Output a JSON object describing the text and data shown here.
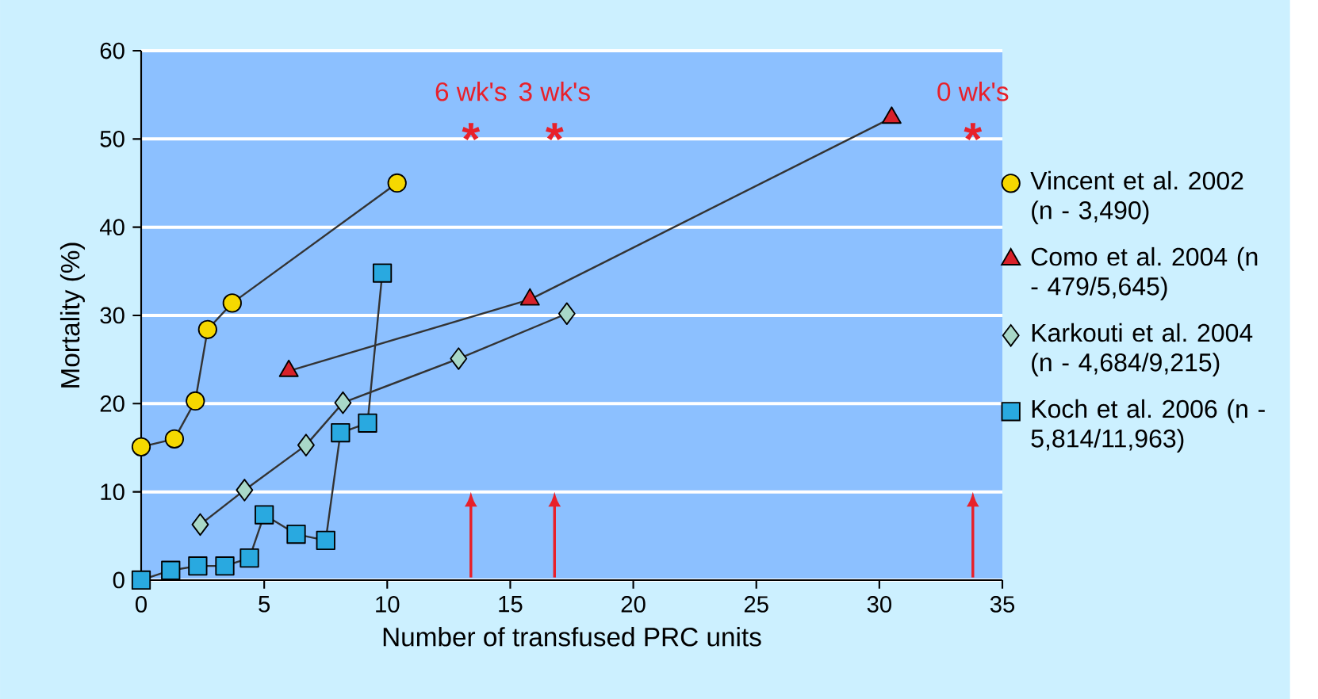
{
  "chart_data": {
    "type": "line",
    "xlabel": "Number of transfused PRC units",
    "ylabel": "Mortality (%)",
    "xlim": [
      0,
      35
    ],
    "xticks": [
      0,
      5,
      10,
      15,
      20,
      25,
      30,
      35
    ],
    "ylim": [
      0,
      60
    ],
    "yticks": [
      0,
      10,
      20,
      30,
      40,
      50,
      60
    ],
    "grid": "y",
    "legend": "right",
    "line_style": "solid",
    "series": [
      {
        "name": "Vincent et al. 2002 (n - 3,490)",
        "color": "#f5d800",
        "marker": "circle",
        "x": [
          0,
          1.35,
          2.2,
          2.7,
          3.7,
          10.4
        ],
        "values": [
          15.1,
          16,
          20.3,
          28.4,
          31.4,
          45
        ]
      },
      {
        "name": "Como et al. 2004 (n - 479/5,645)",
        "color": "#d8212a",
        "marker": "triangle",
        "x": [
          6.0,
          15.8,
          30.5
        ],
        "values": [
          23.7,
          31.8,
          52.4
        ]
      },
      {
        "name": "Karkouti et al. 2004 (n - 4,684/9,215)",
        "color": "#a8d8c8",
        "marker": "diamond",
        "x": [
          2.4,
          4.2,
          6.7,
          8.2,
          12.9,
          17.3
        ],
        "values": [
          6.3,
          10.2,
          15.3,
          20.1,
          25.1,
          30.2
        ]
      },
      {
        "name": "Koch et al. 2006 (n - 5,814/11,963)",
        "color": "#29a9e0",
        "marker": "square",
        "x": [
          0,
          1.2,
          2.3,
          3.4,
          4.4,
          5.0,
          6.3,
          7.5,
          8.1,
          9.2,
          9.8
        ],
        "values": [
          0,
          1.1,
          1.6,
          1.6,
          2.5,
          7.4,
          5.2,
          4.5,
          16.7,
          17.8,
          34.8
        ]
      }
    ],
    "ref_lines": [
      {
        "axis": "x",
        "value": 13.4,
        "label": "6 wk's",
        "color": "#e8202a"
      },
      {
        "axis": "x",
        "value": 16.8,
        "label": "3 wk's",
        "color": "#e8202a"
      },
      {
        "axis": "x",
        "value": 33.8,
        "label": "0 wk's",
        "color": "#e8202a"
      }
    ],
    "annotations": [
      "*",
      "*",
      "*"
    ]
  }
}
